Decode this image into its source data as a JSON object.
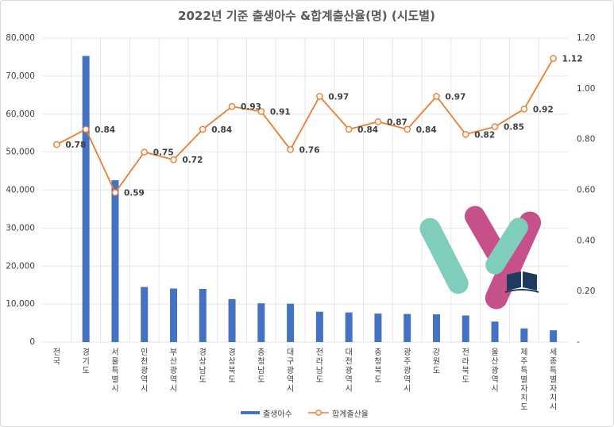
{
  "chart_data": {
    "type": "bar+line",
    "title": "2022년 기준 출생아수 &합계출산율(명) (시도별)",
    "categories": [
      "전국",
      "경기도",
      "서울특별시",
      "인천광역시",
      "부산광역시",
      "경상남도",
      "경상북도",
      "충청남도",
      "대구광역시",
      "전라남도",
      "대전광역시",
      "충청북도",
      "광주광역시",
      "강원도",
      "전라북도",
      "울산광역시",
      "제주특별자치도",
      "세종특별자치시"
    ],
    "series": [
      {
        "name": "출생아수",
        "type": "bar",
        "axis": "left",
        "color": "#4472c4",
        "values": [
          null,
          75300,
          42600,
          14500,
          14100,
          14000,
          11300,
          10200,
          10100,
          8000,
          7800,
          7500,
          7400,
          7300,
          7000,
          5400,
          3600,
          3100
        ]
      },
      {
        "name": "합계출산율",
        "type": "line",
        "axis": "right",
        "color": "#ed7d31",
        "values": [
          0.78,
          0.84,
          0.59,
          0.75,
          0.72,
          0.84,
          0.93,
          0.91,
          0.76,
          0.97,
          0.84,
          0.87,
          0.84,
          0.97,
          0.82,
          0.85,
          0.92,
          1.12
        ],
        "labels": [
          "0.78",
          "0.84",
          "0.59",
          "0.75",
          "0.72",
          "0.84",
          "0.93",
          "0.91",
          "0.76",
          "0.97",
          "0.84",
          "0.87",
          "0.84",
          "0.97",
          "0.82",
          "0.85",
          "0.92",
          "1.12"
        ]
      }
    ],
    "y_left": {
      "min": 0,
      "max": 80000,
      "ticks": [
        "0",
        "10,000",
        "20,000",
        "30,000",
        "40,000",
        "50,000",
        "60,000",
        "70,000",
        "80,000"
      ]
    },
    "y_right": {
      "min": 0,
      "max": 1.2,
      "ticks": [
        "-",
        "0.20",
        "0.40",
        "0.60",
        "0.80",
        "1.00",
        "1.20"
      ]
    },
    "grid": true,
    "legend_position": "bottom"
  },
  "colors": {
    "bar": "#4472c4",
    "line": "#ed7d31",
    "grid": "#e6e6e6",
    "text": "#404040",
    "logo_teal": "#7fcdbb",
    "logo_pink": "#c5508a"
  },
  "logo": {
    "icon": "book-logo-icon"
  }
}
